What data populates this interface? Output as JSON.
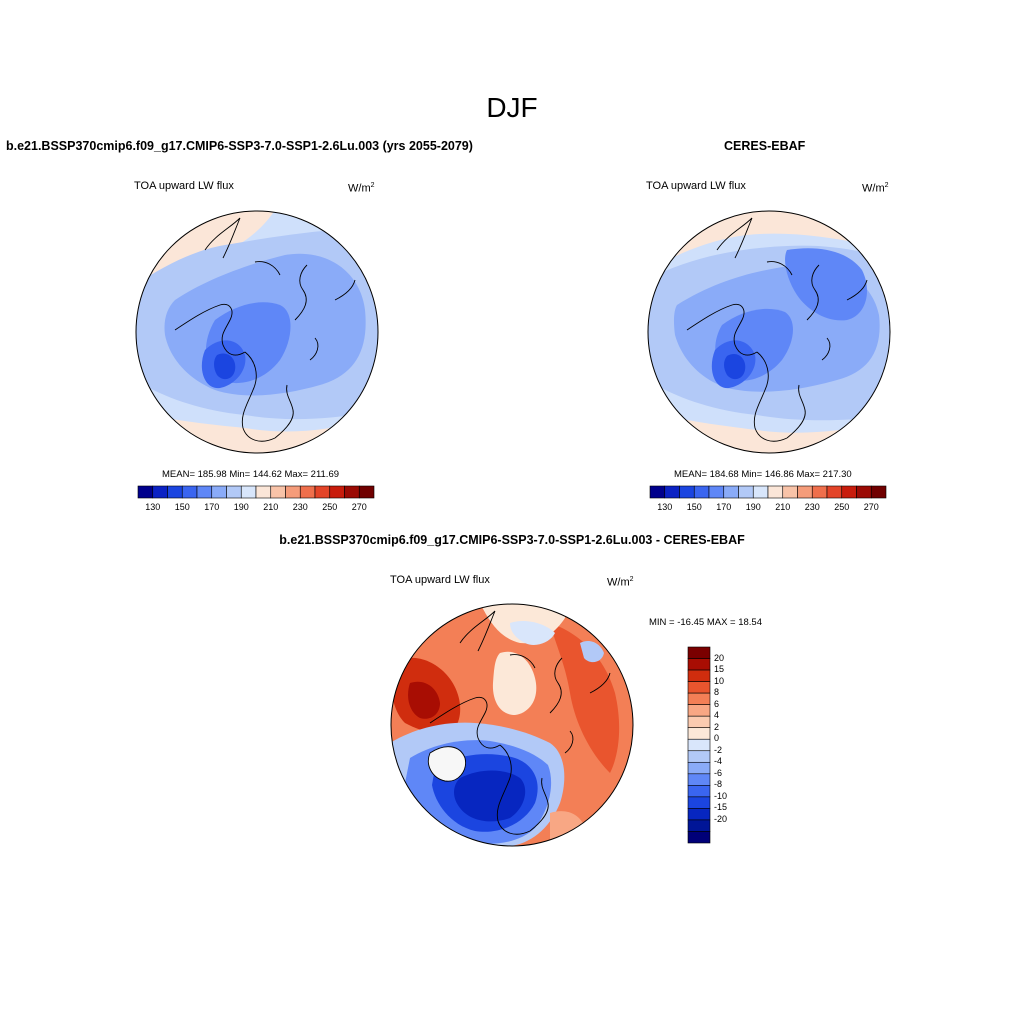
{
  "figure_title": "DJF",
  "panels": {
    "model": {
      "title": "b.e21.BSSP370cmip6.f09_g17.CMIP6-SSP3-7.0-SSP1-2.6Lu.003 (yrs 2055-2079)",
      "variable": "TOA upward LW flux",
      "units_base": "W/m",
      "units_exp": "2",
      "stats": "MEAN= 185.98  Min= 144.62  Max= 211.69"
    },
    "obs": {
      "title": "CERES-EBAF",
      "variable": "TOA upward LW flux",
      "units_base": "W/m",
      "units_exp": "2",
      "stats": "MEAN= 184.68  Min= 146.86  Max= 217.30"
    },
    "diff": {
      "title": "b.e21.BSSP370cmip6.f09_g17.CMIP6-SSP3-7.0-SSP1-2.6Lu.003 - CERES-EBAF",
      "variable": "TOA upward LW flux",
      "units_base": "W/m",
      "units_exp": "2",
      "stats": "MIN = -16.45 MAX =  18.54"
    }
  },
  "abs_colorbar": {
    "colors": [
      "#00008c",
      "#0b22c4",
      "#1b45e0",
      "#3a65f0",
      "#5f87f7",
      "#8aabf8",
      "#b2c9f7",
      "#d8e6fb",
      "#fbe6d8",
      "#f8c3a8",
      "#f59c7a",
      "#ef6f4c",
      "#e34428",
      "#c81c0c",
      "#9b0a04",
      "#700000"
    ],
    "tick_labels": [
      "130",
      "150",
      "170",
      "190",
      "210",
      "230",
      "250",
      "270"
    ]
  },
  "diff_colorbar": {
    "colors": [
      "#7a0000",
      "#a80d03",
      "#d02d0e",
      "#e9552e",
      "#f37f56",
      "#f8a784",
      "#fbcbb0",
      "#fce8d8",
      "#d9e6fb",
      "#b2c9f7",
      "#8aabf8",
      "#5f87f7",
      "#3a65f0",
      "#1b45e0",
      "#0726c0",
      "#001597",
      "#000078"
    ],
    "tick_labels": [
      "20",
      "15",
      "10",
      "8",
      "6",
      "4",
      "2",
      "0",
      "-2",
      "-4",
      "-6",
      "-8",
      "-10",
      "-15",
      "-20"
    ]
  }
}
